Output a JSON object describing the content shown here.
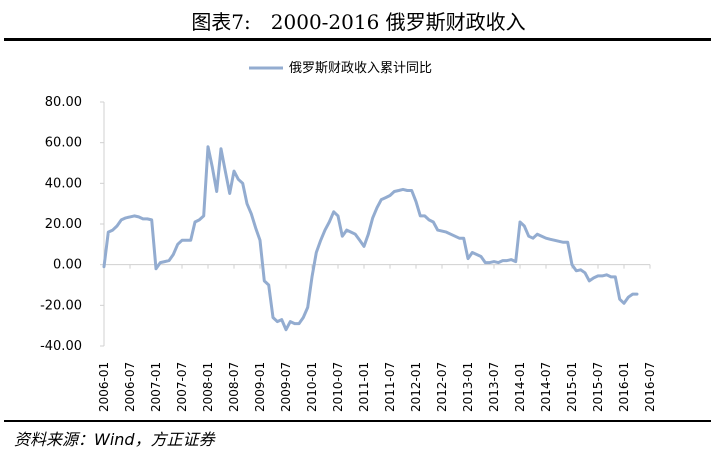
{
  "header": {
    "title": "图表7:　2000-2016 俄罗斯财政收入"
  },
  "footer": {
    "source": "资料来源：Wind，方正证券"
  },
  "colors": {
    "series": "#93acd0",
    "axis": "#d0d0d0",
    "text": "#000000"
  },
  "chart_data": {
    "type": "line",
    "title": "",
    "xlabel": "",
    "ylabel": "",
    "ylim": [
      -40,
      80
    ],
    "yticks": [
      "80.00",
      "60.00",
      "40.00",
      "20.00",
      "0.00",
      "-20.00",
      "-40.00"
    ],
    "grid": false,
    "legend": "top",
    "xticks": [
      "2006-01",
      "2006-07",
      "2007-01",
      "2007-07",
      "2008-01",
      "2008-07",
      "2009-01",
      "2009-07",
      "2010-01",
      "2010-07",
      "2011-01",
      "2011-07",
      "2012-01",
      "2012-07",
      "2013-01",
      "2013-07",
      "2014-01",
      "2014-07",
      "2015-01",
      "2015-07",
      "2016-01",
      "2016-07"
    ],
    "series": [
      {
        "name": "俄罗斯财政收入累计同比",
        "x": [
          "2006-01",
          "2006-02",
          "2006-03",
          "2006-04",
          "2006-05",
          "2006-06",
          "2006-07",
          "2006-08",
          "2006-09",
          "2006-10",
          "2006-11",
          "2006-12",
          "2007-01",
          "2007-02",
          "2007-03",
          "2007-04",
          "2007-05",
          "2007-06",
          "2007-07",
          "2007-08",
          "2007-09",
          "2007-10",
          "2007-11",
          "2007-12",
          "2008-01",
          "2008-02",
          "2008-03",
          "2008-04",
          "2008-05",
          "2008-06",
          "2008-07",
          "2008-08",
          "2008-09",
          "2008-10",
          "2008-11",
          "2008-12",
          "2009-01",
          "2009-02",
          "2009-03",
          "2009-04",
          "2009-05",
          "2009-06",
          "2009-07",
          "2009-08",
          "2009-09",
          "2009-10",
          "2009-11",
          "2009-12",
          "2010-01",
          "2010-02",
          "2010-03",
          "2010-04",
          "2010-05",
          "2010-06",
          "2010-07",
          "2010-08",
          "2010-09",
          "2010-10",
          "2010-11",
          "2010-12",
          "2011-01",
          "2011-02",
          "2011-03",
          "2011-04",
          "2011-05",
          "2011-06",
          "2011-07",
          "2011-08",
          "2011-09",
          "2011-10",
          "2011-11",
          "2011-12",
          "2012-01",
          "2012-02",
          "2012-03",
          "2012-04",
          "2012-05",
          "2012-06",
          "2012-07",
          "2012-08",
          "2012-09",
          "2012-10",
          "2012-11",
          "2012-12",
          "2013-01",
          "2013-02",
          "2013-03",
          "2013-04",
          "2013-05",
          "2013-06",
          "2013-07",
          "2013-08",
          "2013-09",
          "2013-10",
          "2013-11",
          "2013-12",
          "2014-01",
          "2014-02",
          "2014-03",
          "2014-04",
          "2014-05",
          "2014-06",
          "2014-07",
          "2014-08",
          "2014-09",
          "2014-10",
          "2014-11",
          "2014-12",
          "2015-01",
          "2015-02",
          "2015-03",
          "2015-04",
          "2015-05",
          "2015-06",
          "2015-07",
          "2015-08",
          "2015-09",
          "2015-10",
          "2015-11",
          "2015-12",
          "2016-01",
          "2016-02",
          "2016-03",
          "2016-04"
        ],
        "values": [
          -1,
          16,
          17,
          19,
          22,
          23,
          23.5,
          24,
          23.5,
          22.5,
          22.5,
          22,
          -2,
          1,
          1.5,
          2,
          5,
          10,
          12,
          12,
          12,
          21,
          22,
          24,
          58,
          48,
          36,
          57,
          46,
          35,
          46,
          42,
          40,
          30,
          25,
          18,
          12,
          -8,
          -10,
          -26,
          -28,
          -27,
          -32,
          -28,
          -29,
          -29,
          -26,
          -21,
          -6,
          6,
          12,
          17,
          21,
          26,
          24,
          14,
          17,
          16,
          15,
          12,
          9,
          15,
          23,
          28,
          32,
          33,
          34,
          36,
          36.5,
          37,
          36.5,
          36.5,
          31,
          24,
          24,
          22,
          21,
          17,
          16.5,
          16,
          15,
          14,
          13,
          13,
          3,
          6,
          5,
          4,
          1,
          1,
          1.5,
          1,
          2,
          2,
          2.5,
          1.5,
          21,
          19,
          14,
          13,
          15,
          14,
          13,
          12.5,
          12,
          11.5,
          11,
          11,
          0,
          -3,
          -2.5,
          -4,
          -8,
          -6.5,
          -5.5,
          -5.5,
          -5,
          -6,
          -6,
          -17,
          -19,
          -16,
          -14.5,
          -14.5
        ]
      }
    ]
  }
}
